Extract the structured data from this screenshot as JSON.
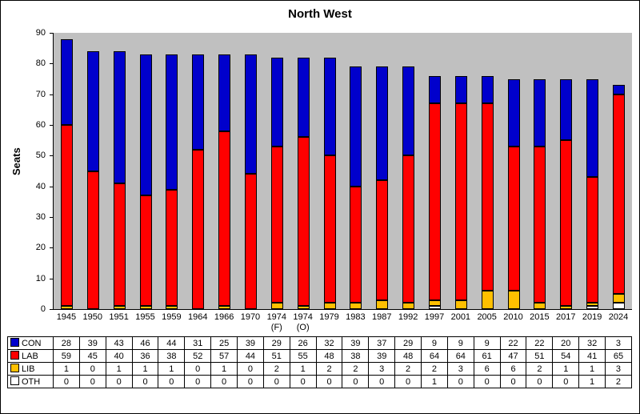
{
  "chart_data": {
    "type": "bar",
    "stacked": true,
    "title": "North West",
    "xlabel": "",
    "ylabel": "Seats",
    "ylim": [
      0,
      90
    ],
    "yticks": [
      0,
      10,
      20,
      30,
      40,
      50,
      60,
      70,
      80,
      90
    ],
    "plot_background": "#c0c0c0",
    "legend_position": "table-left",
    "categories": [
      "1945",
      "1950",
      "1951",
      "1955",
      "1959",
      "1964",
      "1966",
      "1970",
      "1974 (F)",
      "1974 (O)",
      "1979",
      "1983",
      "1987",
      "1992",
      "1997",
      "2001",
      "2005",
      "2010",
      "2015",
      "2017",
      "2019",
      "2024"
    ],
    "series": [
      {
        "name": "CON",
        "color": "#0000cc",
        "values": [
          28,
          39,
          43,
          46,
          44,
          31,
          25,
          39,
          29,
          26,
          32,
          39,
          37,
          29,
          9,
          9,
          9,
          22,
          22,
          20,
          32,
          3
        ]
      },
      {
        "name": "LAB",
        "color": "#ff0000",
        "values": [
          59,
          45,
          40,
          36,
          38,
          52,
          57,
          44,
          51,
          55,
          48,
          38,
          39,
          48,
          64,
          64,
          61,
          47,
          51,
          54,
          41,
          65
        ]
      },
      {
        "name": "LIB",
        "color": "#ffc000",
        "values": [
          1,
          0,
          1,
          1,
          1,
          0,
          1,
          0,
          2,
          1,
          2,
          2,
          3,
          2,
          2,
          3,
          6,
          6,
          2,
          1,
          1,
          3
        ]
      },
      {
        "name": "OTH",
        "color": "#ffffff",
        "values": [
          0,
          0,
          0,
          0,
          0,
          0,
          0,
          0,
          0,
          0,
          0,
          0,
          0,
          0,
          1,
          0,
          0,
          0,
          0,
          0,
          1,
          2
        ]
      }
    ]
  }
}
